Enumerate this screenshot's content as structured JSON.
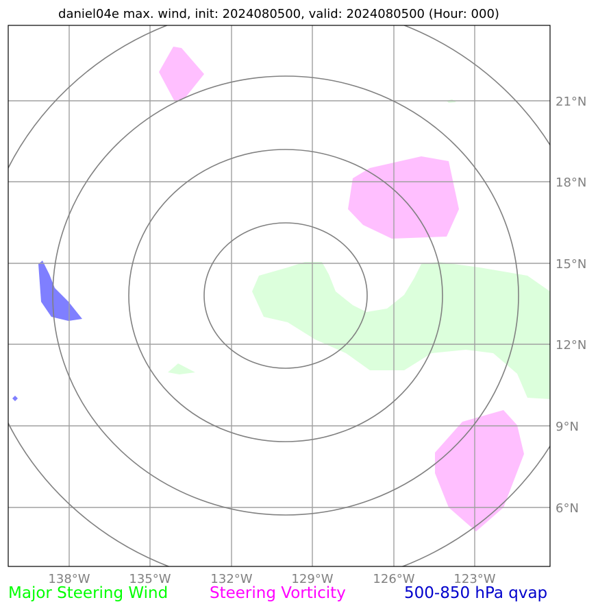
{
  "title": "daniel04e max. wind, init: 2024080500, valid: 2024080500 (Hour: 000)",
  "colors": {
    "steering_wind": "#00ff00",
    "steering_vorticity": "#ff00ff",
    "qvap": "#0000cc",
    "wind_fill": "#dcffdc",
    "vorticity_fill": "#ffbfff",
    "qvap_fill": "#7f7fff",
    "grid": "#a0a0a0",
    "rings": "#808080",
    "tick_text": "#808080"
  },
  "axes": {
    "lon_ticks": [
      "138°W",
      "135°W",
      "132°W",
      "129°W",
      "126°W",
      "123°W"
    ],
    "lat_ticks": [
      "21°N",
      "18°N",
      "15°N",
      "12°N",
      "9°N",
      "6°N"
    ]
  },
  "legend": {
    "wind": "Major Steering Wind",
    "vorticity": "Steering Vorticity",
    "qvap": "500-850 hPa qvap"
  }
}
